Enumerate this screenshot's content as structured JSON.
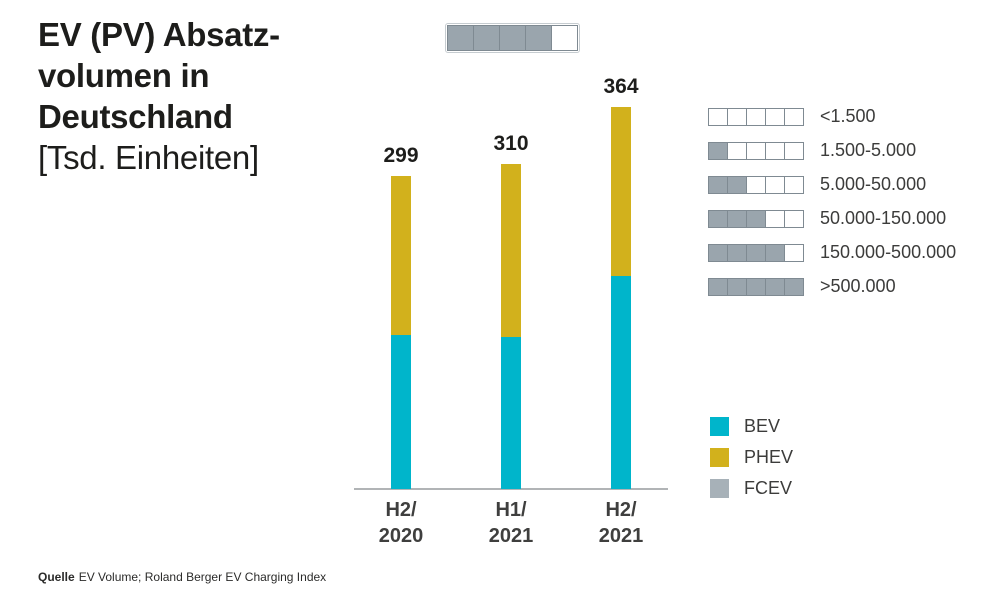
{
  "title": {
    "line1": "EV (PV) Absatz-",
    "line2": "volumen in",
    "line3": "Deutschland",
    "unit_line": "[Tsd. Einheiten]"
  },
  "top_indicator": {
    "cells_total": 5,
    "cells_filled": 4
  },
  "chart_data": {
    "type": "bar",
    "stacked": true,
    "title": "EV (PV) Absatzvolumen in Deutschland",
    "unit": "Tsd. Einheiten",
    "categories": [
      "H2/2020",
      "H1/2021",
      "H2/2021"
    ],
    "category_lines": [
      [
        "H2/",
        "2020"
      ],
      [
        "H1/",
        "2021"
      ],
      [
        "H2/",
        "2021"
      ]
    ],
    "series": [
      {
        "name": "BEV",
        "color": "#00b5cb",
        "values": [
          147,
          145,
          203
        ]
      },
      {
        "name": "PHEV",
        "color": "#d2b11c",
        "values": [
          152,
          165,
          161
        ]
      },
      {
        "name": "FCEV",
        "color": "#a7b1b8",
        "values": [
          0,
          0,
          0
        ]
      }
    ],
    "totals": [
      299,
      310,
      364
    ],
    "ylim": [
      0,
      400
    ],
    "grid": false,
    "legend_position": "right-bottom"
  },
  "range_legend": {
    "cells_per_row": 5,
    "fill_color": "#9aa5ad",
    "rows": [
      {
        "filled": 0,
        "label": "<1.500"
      },
      {
        "filled": 1,
        "label": "1.500-5.000"
      },
      {
        "filled": 2,
        "label": "5.000-50.000"
      },
      {
        "filled": 3,
        "label": "50.000-150.000"
      },
      {
        "filled": 4,
        "label": "150.000-500.000"
      },
      {
        "filled": 5,
        "label": ">500.000"
      }
    ]
  },
  "source": {
    "label": "Quelle",
    "text": "EV Volume; Roland Berger EV Charging Index"
  },
  "colors": {
    "bev": "#00b5cb",
    "phev": "#d2b11c",
    "fcev": "#a7b1b8",
    "square_fill": "#9aa5ad",
    "square_border": "#7f8a92",
    "axis": "#b1b4b6"
  }
}
